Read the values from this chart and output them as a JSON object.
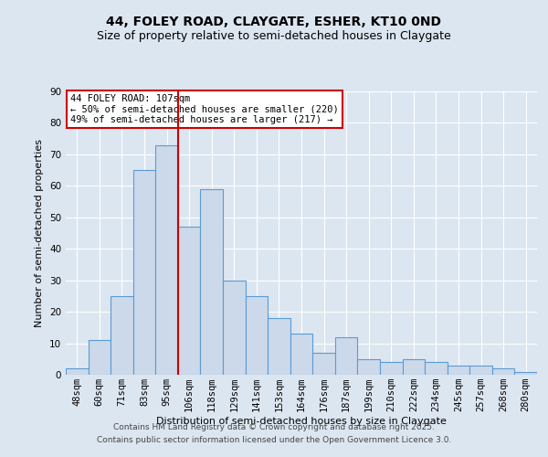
{
  "title1": "44, FOLEY ROAD, CLAYGATE, ESHER, KT10 0ND",
  "title2": "Size of property relative to semi-detached houses in Claygate",
  "xlabel": "Distribution of semi-detached houses by size in Claygate",
  "ylabel": "Number of semi-detached properties",
  "categories": [
    "48sqm",
    "60sqm",
    "71sqm",
    "83sqm",
    "95sqm",
    "106sqm",
    "118sqm",
    "129sqm",
    "141sqm",
    "153sqm",
    "164sqm",
    "176sqm",
    "187sqm",
    "199sqm",
    "210sqm",
    "222sqm",
    "234sqm",
    "245sqm",
    "257sqm",
    "268sqm",
    "280sqm"
  ],
  "values": [
    2,
    11,
    25,
    65,
    73,
    47,
    59,
    30,
    25,
    18,
    13,
    7,
    12,
    5,
    4,
    5,
    4,
    3,
    3,
    2,
    1
  ],
  "bar_color": "#ccd9ea",
  "bar_edge_color": "#5b9bd5",
  "vline_pos": 4.5,
  "vline_color": "#cc0000",
  "vline_label": "44 FOLEY ROAD: 107sqm",
  "annotation_smaller": "← 50% of semi-detached houses are smaller (220)",
  "annotation_larger": "49% of semi-detached houses are larger (217) →",
  "annotation_box_color": "#ffffff",
  "annotation_box_edge": "#cc0000",
  "ylim": [
    0,
    90
  ],
  "yticks": [
    0,
    10,
    20,
    30,
    40,
    50,
    60,
    70,
    80,
    90
  ],
  "footer1": "Contains HM Land Registry data © Crown copyright and database right 2025.",
  "footer2": "Contains public sector information licensed under the Open Government Licence 3.0.",
  "bg_color": "#dce6f1",
  "plot_bg_color": "#dce6f1",
  "grid_color": "#ffffff",
  "title_fontsize": 10,
  "subtitle_fontsize": 9,
  "axis_fontsize": 8,
  "tick_fontsize": 7.5,
  "annot_fontsize": 7.5,
  "footer_fontsize": 6.5
}
